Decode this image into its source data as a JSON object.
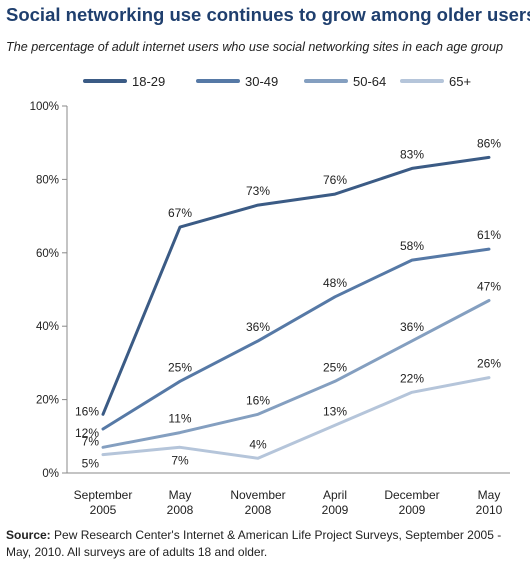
{
  "title": "Social networking use continues to grow among older users",
  "subtitle": "The percentage of adult internet users who use social networking sites in each age group",
  "source": {
    "label": "Source:",
    "text": "Pew Research Center's Internet & American Life Project Surveys, September 2005 - May, 2010. All surveys are of adults 18 and older."
  },
  "chart_data": {
    "type": "line",
    "title": "Social networking use continues to grow among older users",
    "subtitle": "The percentage of adult internet users who use social networking sites in each age group",
    "x": [
      [
        "September",
        "2005"
      ],
      [
        "May",
        "2008"
      ],
      [
        "November",
        "2008"
      ],
      [
        "April",
        "2009"
      ],
      [
        "December",
        "2009"
      ],
      [
        "May",
        "2010"
      ]
    ],
    "yticks": [
      "0%",
      "20%",
      "40%",
      "60%",
      "80%",
      "100%"
    ],
    "ylim": [
      0,
      100
    ],
    "grid": false,
    "legend_position": "top",
    "series": [
      {
        "name": "18-29",
        "color": "#3b5b85",
        "values": [
          16,
          67,
          73,
          76,
          83,
          86
        ],
        "labels": [
          "16%",
          "67%",
          "73%",
          "76%",
          "83%",
          "86%"
        ]
      },
      {
        "name": "30-49",
        "color": "#5679a6",
        "values": [
          12,
          25,
          36,
          48,
          58,
          61
        ],
        "labels": [
          "12%",
          "25%",
          "36%",
          "48%",
          "58%",
          "61%"
        ]
      },
      {
        "name": "50-64",
        "color": "#849fc0",
        "values": [
          7,
          11,
          16,
          25,
          36,
          47
        ],
        "labels": [
          "7%",
          "11%",
          "16%",
          "25%",
          "36%",
          "47%"
        ]
      },
      {
        "name": "65+",
        "color": "#b5c5da",
        "values": [
          5,
          7,
          4,
          13,
          22,
          26
        ],
        "labels": [
          "5%",
          "7%",
          "4%",
          "13%",
          "22%",
          "26%"
        ]
      }
    ]
  }
}
